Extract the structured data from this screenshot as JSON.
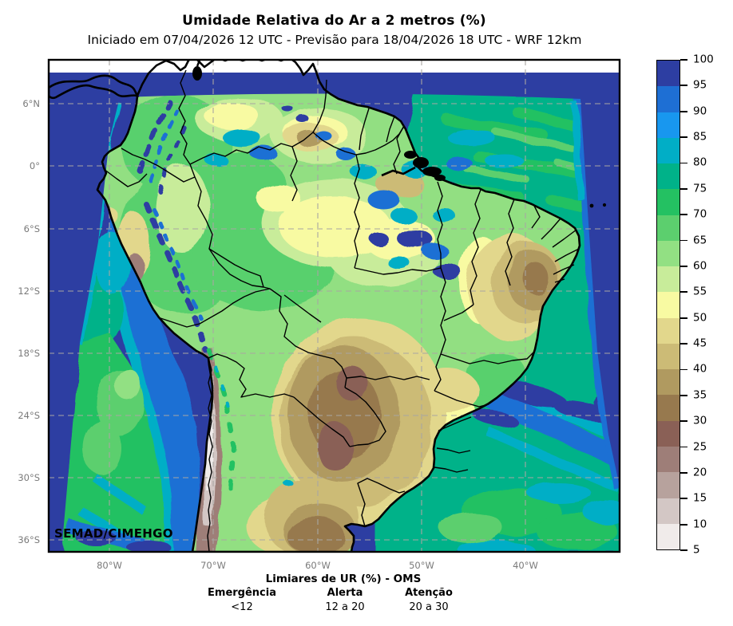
{
  "header": {
    "title": "Umidade Relativa do Ar a 2 metros (%)",
    "subtitle": "Iniciado em 07/04/2026 12 UTC - Previsão para 18/04/2026 18 UTC - WRF 12km"
  },
  "map": {
    "watermark": "SEMAD/CIMEHGO",
    "lat_ticks": [
      "6°N",
      "0°",
      "6°S",
      "12°S",
      "18°S",
      "24°S",
      "30°S",
      "36°S"
    ],
    "lon_ticks": [
      "80°W",
      "70°W",
      "60°W",
      "50°W",
      "40°W"
    ]
  },
  "colorbar": {
    "tick_labels": [
      "100",
      "95",
      "90",
      "85",
      "80",
      "75",
      "70",
      "65",
      "60",
      "55",
      "50",
      "45",
      "40",
      "35",
      "30",
      "25",
      "20",
      "15",
      "10",
      "5"
    ],
    "cells": [
      {
        "range": "95-100",
        "color": "#2d3ea2"
      },
      {
        "range": "90-95",
        "color": "#1e6fd4"
      },
      {
        "range": "85-90",
        "color": "#1897ef"
      },
      {
        "range": "80-85",
        "color": "#01aec6"
      },
      {
        "range": "75-80",
        "color": "#00b289"
      },
      {
        "range": "70-75",
        "color": "#24c162"
      },
      {
        "range": "65-70",
        "color": "#5ccf6e"
      },
      {
        "range": "60-65",
        "color": "#92e083"
      },
      {
        "range": "55-60",
        "color": "#c8ec9a"
      },
      {
        "range": "50-55",
        "color": "#f8faa2"
      },
      {
        "range": "45-50",
        "color": "#e2d78c"
      },
      {
        "range": "40-45",
        "color": "#ccbb76"
      },
      {
        "range": "35-40",
        "color": "#b09a60"
      },
      {
        "range": "30-35",
        "color": "#97794e"
      },
      {
        "range": "25-30",
        "color": "#8a6056"
      },
      {
        "range": "20-25",
        "color": "#9e7e78"
      },
      {
        "range": "15-20",
        "color": "#b7a29d"
      },
      {
        "range": "10-15",
        "color": "#d3c7c5"
      },
      {
        "range": "5-10",
        "color": "#f0ebea"
      }
    ]
  },
  "thresholds": {
    "title": "Limiares de UR (%) - OMS",
    "columns": [
      {
        "label": "Emergência",
        "value": "<12"
      },
      {
        "label": "Alerta",
        "value": "12 a 20"
      },
      {
        "label": "Atenção",
        "value": "20 a 30"
      }
    ]
  },
  "chart_data": {
    "type": "heatmap",
    "title": "Umidade Relativa do Ar a 2 metros (%)",
    "subtitle": "Iniciado em 07/04/2026 12 UTC - Previsão para 18/04/2026 18 UTC - WRF 12km",
    "variable": "Umidade Relativa do Ar (%)",
    "model": "WRF 12km",
    "init_time": "07/04/2026 12 UTC",
    "valid_time": "18/04/2026 18 UTC",
    "region": "América do Sul / Brasil",
    "x_axis": {
      "label": "",
      "ticks": [
        "80°W",
        "70°W",
        "60°W",
        "50°W",
        "40°W"
      ]
    },
    "y_axis": {
      "label": "",
      "ticks": [
        "6°N",
        "0°",
        "6°S",
        "12°S",
        "18°S",
        "24°S",
        "30°S",
        "36°S"
      ]
    },
    "colorbar": {
      "min": 5,
      "max": 100,
      "step": 5,
      "unit": "%"
    },
    "legend_position": "right",
    "grid": true,
    "qualitative_field": {
      "ocean_north_atlantic_caribbean": "95-100",
      "tropical_atlantic": "75-80 com faixas 70-75",
      "amazonia_oeste": "55-70",
      "amazonia_central": "50-60 com núcleos 85-100",
      "nordeste_interior": "30-45",
      "centro_oeste_paraguai_argentina": "30-45 com núcleos 25-35",
      "andes_chile_argentina": "5-20",
      "sul_sudeste_brasil": "55-70",
      "atlantico_sudeste_offshore": "85-100",
      "pacifico_sul": "65-90"
    },
    "credit": "SEMAD/CIMEHGO"
  }
}
